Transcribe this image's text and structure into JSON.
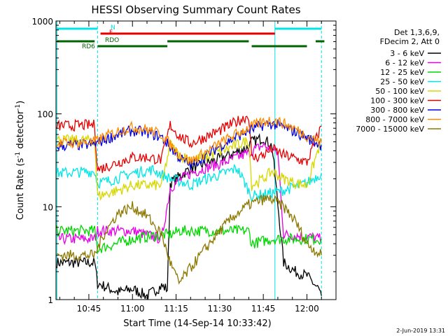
{
  "chart_data": {
    "type": "line",
    "title": "HESSI Observing Summary Count Rates",
    "xlabel": "Start Time (14-Sep-14 10:33:42)",
    "ylabel": "Count Rate (s⁻¹ detector⁻¹)",
    "ylabel_main": "Count Rate (s",
    "ylabel_sup1": "-1",
    "ylabel_mid": " detector",
    "ylabel_sup2": "-1",
    "ylabel_end": ")",
    "y_scale": "log",
    "ylim": [
      1,
      1000
    ],
    "xlim": [
      "10:33:42",
      "12:10:00"
    ],
    "x_ticks": [
      "10:45",
      "11:00",
      "11:15",
      "11:30",
      "11:45",
      "12:00"
    ],
    "y_ticks": [
      "1",
      "10",
      "100",
      "1000"
    ],
    "legend_placement": "right",
    "legend_header": [
      "Det 1,3,6,9,",
      "FDecim 2, Att 0"
    ],
    "series": [
      {
        "name": "3 - 6 keV",
        "color": "#000000",
        "x": [
          "10:34",
          "10:47",
          "10:48",
          "10:55",
          "11:00",
          "11:05",
          "11:10",
          "11:12",
          "11:13",
          "11:16",
          "11:20",
          "11:25",
          "11:30",
          "11:35",
          "11:40",
          "11:41",
          "11:45",
          "11:48",
          "11:52",
          "11:56",
          "12:00",
          "12:04",
          "12:05"
        ],
        "y": [
          2.5,
          2.5,
          1.5,
          1.2,
          1.3,
          1.1,
          1.4,
          1.3,
          18,
          21,
          26,
          29,
          33,
          38,
          44,
          50,
          55,
          45,
          2.5,
          2.0,
          1.8,
          1.3,
          1.1
        ]
      },
      {
        "name": "6 - 12 keV",
        "color": "#e600e6",
        "x": [
          "10:34",
          "10:47",
          "10:48",
          "11:00",
          "11:10",
          "11:13",
          "11:16",
          "11:20",
          "11:25",
          "11:30",
          "11:35",
          "11:40",
          "11:45",
          "11:50",
          "11:52",
          "12:00",
          "12:05"
        ],
        "y": [
          4.5,
          4.5,
          5.5,
          5.5,
          4.5,
          16,
          19,
          23,
          26,
          29,
          33,
          38,
          46,
          38,
          5.0,
          4.8,
          4.5
        ]
      },
      {
        "name": "12 - 25 keV",
        "color": "#00d700",
        "x": [
          "10:34",
          "10:47",
          "10:48",
          "11:00",
          "11:10",
          "11:13",
          "11:16",
          "11:20",
          "11:25",
          "11:30",
          "11:35",
          "11:40",
          "11:41",
          "11:48",
          "11:52",
          "12:00",
          "12:05"
        ],
        "y": [
          5.5,
          5.5,
          3.5,
          4.5,
          5.0,
          5.0,
          5.5,
          5.5,
          5.5,
          5.5,
          5.5,
          5.5,
          4.0,
          4.5,
          4.5,
          4.5,
          4.5
        ]
      },
      {
        "name": "25 - 50 keV",
        "color": "#00e6e6",
        "x": [
          "10:34",
          "10:47",
          "10:48",
          "10:52",
          "11:00",
          "11:07",
          "11:13",
          "11:16",
          "11:20",
          "11:25",
          "11:30",
          "11:36",
          "11:41",
          "11:48",
          "11:55",
          "12:00",
          "12:05"
        ],
        "y": [
          23,
          24,
          18,
          19,
          23,
          25,
          20,
          19,
          17,
          20,
          22,
          26,
          13,
          14,
          16,
          18,
          23
        ]
      },
      {
        "name": "50 - 100 keV",
        "color": "#d7d700",
        "x": [
          "10:34",
          "10:47",
          "10:48",
          "10:55",
          "11:00",
          "11:05",
          "11:10",
          "11:13",
          "11:16",
          "11:20",
          "11:25",
          "11:30",
          "11:35",
          "11:40",
          "11:41",
          "11:45",
          "11:48",
          "11:52",
          "11:56",
          "12:00",
          "12:05"
        ],
        "y": [
          52,
          52,
          13,
          15,
          17,
          17,
          17,
          47,
          36,
          32,
          34,
          39,
          45,
          52,
          17,
          20,
          24,
          20,
          18,
          17,
          53
        ]
      },
      {
        "name": "100 - 300 keV",
        "color": "#e60000",
        "x": [
          "10:34",
          "10:47",
          "10:48",
          "10:55",
          "11:00",
          "11:05",
          "11:10",
          "11:13",
          "11:16",
          "11:20",
          "11:25",
          "11:30",
          "11:35",
          "11:40",
          "11:41",
          "11:45",
          "11:48",
          "11:52",
          "11:56",
          "12:00",
          "12:05"
        ],
        "y": [
          74,
          76,
          25,
          30,
          34,
          34,
          32,
          76,
          58,
          48,
          56,
          66,
          80,
          96,
          33,
          36,
          42,
          36,
          33,
          30,
          74
        ]
      },
      {
        "name": "300 - 800 keV",
        "color": "#0000e6",
        "x": [
          "10:34",
          "10:47",
          "10:50",
          "10:55",
          "11:00",
          "11:05",
          "11:10",
          "11:13",
          "11:16",
          "11:20",
          "11:25",
          "11:30",
          "11:35",
          "11:40",
          "11:45",
          "11:48",
          "11:52",
          "11:56",
          "12:00",
          "12:05"
        ],
        "y": [
          45,
          47,
          52,
          60,
          66,
          63,
          56,
          44,
          34,
          28,
          35,
          45,
          55,
          66,
          76,
          78,
          72,
          64,
          55,
          46
        ]
      },
      {
        "name": "800 - 7000 keV",
        "color": "#ff8c00",
        "x": [
          "10:34",
          "10:47",
          "10:50",
          "10:55",
          "11:00",
          "11:05",
          "11:10",
          "11:13",
          "11:16",
          "11:20",
          "11:25",
          "11:30",
          "11:35",
          "11:40",
          "11:45",
          "11:48",
          "11:52",
          "11:56",
          "12:00",
          "12:05"
        ],
        "y": [
          48,
          50,
          56,
          65,
          72,
          68,
          60,
          47,
          37,
          31,
          38,
          48,
          59,
          71,
          82,
          86,
          79,
          69,
          58,
          49
        ]
      },
      {
        "name": "7000 - 15000 keV",
        "color": "#8c7800",
        "x": [
          "10:34",
          "10:47",
          "10:50",
          "10:55",
          "11:00",
          "11:05",
          "11:10",
          "11:13",
          "11:16",
          "11:20",
          "11:25",
          "11:30",
          "11:35",
          "11:40",
          "11:45",
          "11:48",
          "11:52",
          "11:56",
          "12:00",
          "12:05"
        ],
        "y": [
          3.0,
          3.0,
          5.0,
          8.5,
          10,
          8,
          5,
          2.5,
          1.5,
          2.2,
          3.5,
          5.5,
          8,
          10.5,
          12,
          12,
          10,
          7,
          4,
          3
        ]
      }
    ],
    "annotations": [
      {
        "label": "N",
        "color": "#00e6e6",
        "segments": [
          [
            "10:34",
            "10:48"
          ],
          [
            "11:49",
            "12:05"
          ]
        ]
      },
      {
        "label": "F",
        "color": "#e60000",
        "segments": [
          [
            "10:49",
            "11:49"
          ]
        ]
      },
      {
        "label": "RDO",
        "color": "#006400",
        "segments": [
          [
            "10:34",
            "10:47"
          ],
          [
            "11:12",
            "11:40"
          ],
          [
            "12:03",
            "12:06"
          ]
        ]
      },
      {
        "label": "RD6",
        "color": "#006400",
        "segments": [
          [
            "10:48",
            "11:12"
          ],
          [
            "11:41",
            "12:00"
          ]
        ]
      }
    ],
    "vertical_markers": [
      {
        "color": "#00e6e6",
        "style": "solid",
        "x": "10:34"
      },
      {
        "color": "#00e6e6",
        "style": "dashed",
        "x": "10:48"
      },
      {
        "color": "#00e6e6",
        "style": "solid",
        "x": "11:49"
      },
      {
        "color": "#00e6e6",
        "style": "dashed",
        "x": "12:05"
      }
    ],
    "timestamp": "2-Jun-2019 13:31"
  }
}
